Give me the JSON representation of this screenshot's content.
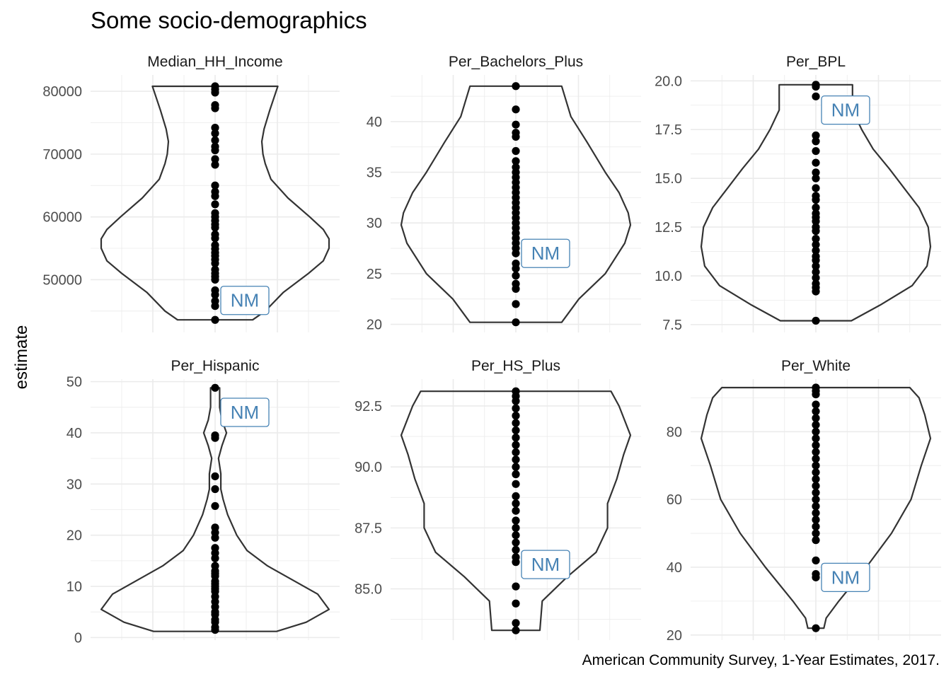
{
  "chart": {
    "title": "Some socio-demographics",
    "ylabel": "estimate",
    "caption": "American Community Survey, 1-Year Estimates, 2017."
  },
  "chart_data": {
    "type": "violin",
    "grid": true,
    "highlight_label": "NM",
    "panels": [
      {
        "name": "Median_HH_Income",
        "ticks": [
          50000,
          60000,
          70000,
          80000
        ],
        "tick_labels": [
          "50000",
          "60000",
          "70000",
          "80000"
        ],
        "ylim": [
          41600,
          82600
        ],
        "highlight_value": 46700,
        "values": [
          80800,
          80300,
          79800,
          77800,
          77300,
          74200,
          73300,
          72200,
          71200,
          70600,
          69200,
          68300,
          65000,
          64000,
          63300,
          62000,
          60600,
          60000,
          59400,
          58800,
          58300,
          57200,
          56600,
          55500,
          54900,
          54300,
          53800,
          53200,
          52600,
          51600,
          51000,
          50500,
          50000,
          48300,
          47600,
          46600,
          45800,
          43600
        ],
        "violin": [
          [
            43600,
            0.67
          ],
          [
            45000,
            0.56
          ],
          [
            48000,
            0.4
          ],
          [
            51000,
            0.18
          ],
          [
            53000,
            0.05
          ],
          [
            55000,
            0.0
          ],
          [
            56500,
            0.0
          ],
          [
            58000,
            0.05
          ],
          [
            60000,
            0.17
          ],
          [
            63000,
            0.36
          ],
          [
            66000,
            0.51
          ],
          [
            68500,
            0.56
          ],
          [
            70000,
            0.58
          ],
          [
            72000,
            0.59
          ],
          [
            74000,
            0.57
          ],
          [
            77000,
            0.52
          ],
          [
            80800,
            0.45
          ]
        ]
      },
      {
        "name": "Per_Bachelors_Plus",
        "ticks": [
          20,
          25,
          30,
          35,
          40
        ],
        "tick_labels": [
          "20",
          "25",
          "30",
          "35",
          "40"
        ],
        "ylim": [
          19.2,
          44.6
        ],
        "highlight_value": 27.0,
        "values": [
          43.5,
          41.2,
          39.7,
          38.9,
          38.5,
          37.1,
          36.1,
          35.5,
          35.0,
          34.5,
          34.0,
          33.5,
          33.0,
          32.5,
          32.0,
          31.5,
          31.0,
          30.5,
          30.0,
          29.5,
          29.0,
          28.5,
          28.0,
          27.5,
          27.0,
          26.0,
          25.5,
          24.8,
          24.0,
          23.5,
          22.0,
          20.2
        ],
        "violin": [
          [
            20.2,
            0.6
          ],
          [
            22.5,
            0.45
          ],
          [
            25.0,
            0.22
          ],
          [
            28.0,
            0.05
          ],
          [
            29.8,
            0.0
          ],
          [
            31.0,
            0.02
          ],
          [
            33.0,
            0.1
          ],
          [
            35.0,
            0.22
          ],
          [
            38.0,
            0.38
          ],
          [
            40.5,
            0.52
          ],
          [
            43.5,
            0.6
          ]
        ]
      },
      {
        "name": "Per_BPL",
        "ticks": [
          7.5,
          10.0,
          12.5,
          15.0,
          17.5,
          20.0
        ],
        "tick_labels": [
          "7.5",
          "10.0",
          "12.5",
          "15.0",
          "17.5",
          "20.0"
        ],
        "ylim": [
          7.1,
          20.3
        ],
        "highlight_value": 18.5,
        "values": [
          19.8,
          19.7,
          19.2,
          17.2,
          16.9,
          16.4,
          15.8,
          15.3,
          15.0,
          14.5,
          14.1,
          13.9,
          13.5,
          13.2,
          13.0,
          12.8,
          12.5,
          12.3,
          11.9,
          11.6,
          11.3,
          11.0,
          10.8,
          10.5,
          10.2,
          9.9,
          9.6,
          9.4,
          9.2,
          7.7
        ],
        "violin": [
          [
            7.7,
            0.69
          ],
          [
            8.5,
            0.44
          ],
          [
            9.5,
            0.16
          ],
          [
            10.5,
            0.03
          ],
          [
            11.5,
            0.0
          ],
          [
            12.5,
            0.02
          ],
          [
            13.5,
            0.1
          ],
          [
            14.5,
            0.23
          ],
          [
            15.5,
            0.36
          ],
          [
            16.5,
            0.5
          ],
          [
            17.5,
            0.6
          ],
          [
            18.5,
            0.68
          ],
          [
            19.8,
            0.68
          ]
        ]
      },
      {
        "name": "Per_Hispanic",
        "ticks": [
          0,
          10,
          20,
          30,
          40,
          50
        ],
        "tick_labels": [
          "0",
          "10",
          "20",
          "30",
          "40",
          "50"
        ],
        "ylim": [
          -0.5,
          50.5
        ],
        "highlight_value": 44.0,
        "values": [
          48.8,
          39.5,
          39.0,
          31.5,
          29.0,
          25.7,
          21.5,
          20.5,
          19.5,
          17.5,
          16.5,
          15.5,
          14.0,
          13.0,
          12.5,
          12.0,
          11.0,
          10.5,
          10.0,
          9.5,
          9.0,
          8.0,
          7.0,
          6.0,
          5.0,
          4.5,
          3.5,
          3.0,
          2.0,
          1.5
        ],
        "violin": [
          [
            1.2,
            0.46
          ],
          [
            3.0,
            0.2
          ],
          [
            5.5,
            0.0
          ],
          [
            8.5,
            0.1
          ],
          [
            11.0,
            0.3
          ],
          [
            14.0,
            0.54
          ],
          [
            17.0,
            0.72
          ],
          [
            20.0,
            0.81
          ],
          [
            24.0,
            0.89
          ],
          [
            27.0,
            0.93
          ],
          [
            29.0,
            0.95
          ],
          [
            32.0,
            0.95
          ],
          [
            35.0,
            0.97
          ],
          [
            37.5,
            0.94
          ],
          [
            40.0,
            0.9
          ],
          [
            42.5,
            0.94
          ],
          [
            45.0,
            0.96
          ],
          [
            48.8,
            0.96
          ]
        ]
      },
      {
        "name": "Per_HS_Plus",
        "ticks": [
          85.0,
          87.5,
          90.0,
          92.5
        ],
        "tick_labels": [
          "85.0",
          "87.5",
          "90.0",
          "92.5"
        ],
        "ylim": [
          82.9,
          93.6
        ],
        "highlight_value": 86.0,
        "values": [
          93.1,
          92.9,
          92.7,
          92.4,
          92.1,
          91.8,
          91.5,
          91.2,
          90.9,
          90.6,
          90.3,
          90.0,
          89.7,
          89.3,
          88.8,
          88.5,
          88.2,
          87.8,
          87.5,
          87.2,
          86.9,
          86.6,
          86.3,
          86.1,
          85.1,
          84.4,
          83.6,
          83.3
        ],
        "violin": [
          [
            83.3,
            0.79
          ],
          [
            84.5,
            0.77
          ],
          [
            85.5,
            0.55
          ],
          [
            86.5,
            0.3
          ],
          [
            87.5,
            0.2
          ],
          [
            88.5,
            0.2
          ],
          [
            89.5,
            0.12
          ],
          [
            90.5,
            0.06
          ],
          [
            91.3,
            0.0
          ],
          [
            92.5,
            0.1
          ],
          [
            93.1,
            0.17
          ]
        ]
      },
      {
        "name": "Per_White",
        "ticks": [
          20,
          40,
          60,
          80
        ],
        "tick_labels": [
          "20",
          "40",
          "60",
          "80"
        ],
        "ylim": [
          18.5,
          95.5
        ],
        "highlight_value": 37.0,
        "values": [
          93.0,
          92.0,
          91.0,
          88.0,
          86.0,
          84.0,
          82.0,
          80.0,
          78.0,
          76.0,
          74.0,
          72.0,
          70.0,
          68.0,
          66.0,
          64.0,
          62.0,
          60.0,
          58.0,
          56.0,
          54.0,
          52.0,
          50.0,
          48.0,
          42.0,
          38.0,
          37.0,
          22.0
        ],
        "violin": [
          [
            22.0,
            0.93
          ],
          [
            25.0,
            0.91
          ],
          [
            30.0,
            0.8
          ],
          [
            40.0,
            0.56
          ],
          [
            50.0,
            0.34
          ],
          [
            60.0,
            0.17
          ],
          [
            70.0,
            0.08
          ],
          [
            78.0,
            0.0
          ],
          [
            85.0,
            0.05
          ],
          [
            90.0,
            0.1
          ],
          [
            93.0,
            0.18
          ]
        ]
      }
    ]
  }
}
